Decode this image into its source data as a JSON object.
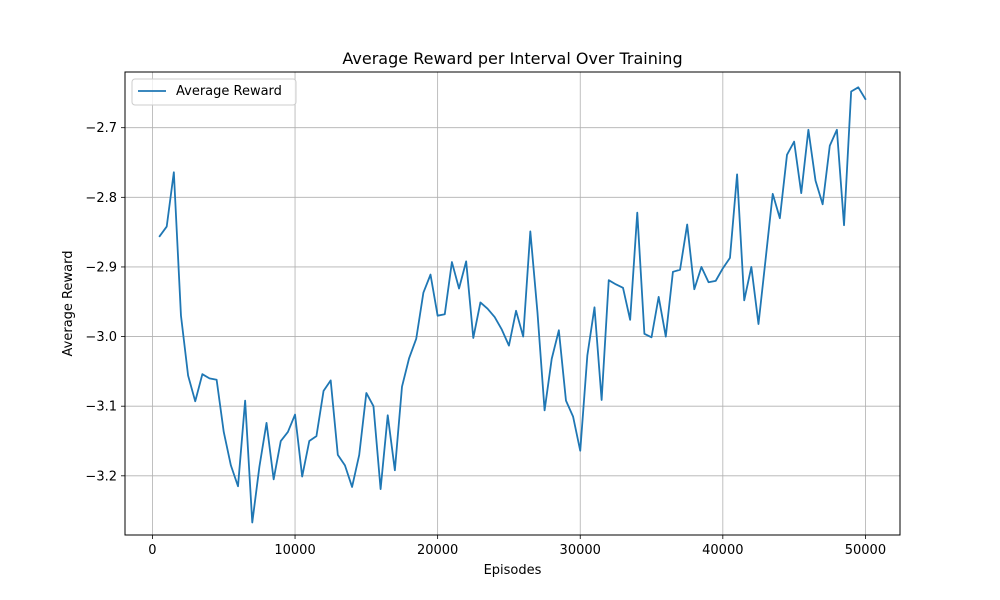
{
  "chart_data": {
    "type": "line",
    "title": "Average Reward per Interval Over Training",
    "xlabel": "Episodes",
    "ylabel": "Average Reward",
    "xlim": [
      -1925,
      52425
    ],
    "ylim": [
      -3.285,
      -2.62
    ],
    "x_ticks": [
      0,
      10000,
      20000,
      30000,
      40000,
      50000
    ],
    "x_tick_labels": [
      "0",
      "10000",
      "20000",
      "30000",
      "40000",
      "50000"
    ],
    "y_ticks": [
      -3.2,
      -3.1,
      -3.0,
      -2.9,
      -2.8,
      -2.7
    ],
    "y_tick_labels": [
      "−3.2",
      "−3.1",
      "−3.0",
      "−2.9",
      "−2.8",
      "−2.7"
    ],
    "grid": true,
    "legend_position": "top-left",
    "series": [
      {
        "name": "Average Reward",
        "color": "#1f77b4",
        "x": [
          500,
          1000,
          1500,
          2000,
          2500,
          3000,
          3500,
          4000,
          4500,
          5000,
          5500,
          6000,
          6500,
          7000,
          7500,
          8000,
          8500,
          9000,
          9500,
          10000,
          10500,
          11000,
          11500,
          12000,
          12500,
          13000,
          13500,
          14000,
          14500,
          15000,
          15500,
          16000,
          16500,
          17000,
          17500,
          18000,
          18500,
          19000,
          19500,
          20000,
          20500,
          21000,
          21500,
          22000,
          22500,
          23000,
          23500,
          24000,
          24500,
          25000,
          25500,
          26000,
          26500,
          27000,
          27500,
          28000,
          28500,
          29000,
          29500,
          30000,
          30500,
          31000,
          31500,
          32000,
          32500,
          33000,
          33500,
          34000,
          34500,
          35000,
          35500,
          36000,
          36500,
          37000,
          37500,
          38000,
          38500,
          39000,
          39500,
          40000,
          40500,
          41000,
          41500,
          42000,
          42500,
          43000,
          43500,
          44000,
          44500,
          45000,
          45500,
          46000,
          46500,
          47000,
          47500,
          48000,
          48500,
          49000,
          49500,
          50000
        ],
        "y": [
          -2.856,
          -2.842,
          -2.764,
          -2.97,
          -3.056,
          -3.093,
          -3.054,
          -3.06,
          -3.062,
          -3.137,
          -3.185,
          -3.215,
          -3.092,
          -3.267,
          -3.187,
          -3.124,
          -3.205,
          -3.15,
          -3.137,
          -3.112,
          -3.201,
          -3.15,
          -3.143,
          -3.078,
          -3.063,
          -3.17,
          -3.185,
          -3.216,
          -3.17,
          -3.081,
          -3.1,
          -3.219,
          -3.113,
          -3.192,
          -3.072,
          -3.031,
          -3.003,
          -2.937,
          -2.911,
          -2.97,
          -2.968,
          -2.893,
          -2.931,
          -2.892,
          -3.002,
          -2.951,
          -2.96,
          -2.972,
          -2.99,
          -3.013,
          -2.963,
          -3.0,
          -2.849,
          -2.965,
          -3.106,
          -3.032,
          -2.991,
          -3.092,
          -3.115,
          -3.164,
          -3.027,
          -2.958,
          -3.091,
          -2.919,
          -2.925,
          -2.93,
          -2.976,
          -2.822,
          -2.996,
          -3.001,
          -2.943,
          -3.0,
          -2.907,
          -2.904,
          -2.839,
          -2.932,
          -2.9,
          -2.922,
          -2.92,
          -2.902,
          -2.887,
          -2.767,
          -2.948,
          -2.9,
          -2.982,
          -2.889,
          -2.795,
          -2.83,
          -2.739,
          -2.72,
          -2.794,
          -2.703,
          -2.776,
          -2.81,
          -2.726,
          -2.703,
          -2.84,
          -2.648,
          -2.642,
          -2.659
        ]
      }
    ]
  }
}
